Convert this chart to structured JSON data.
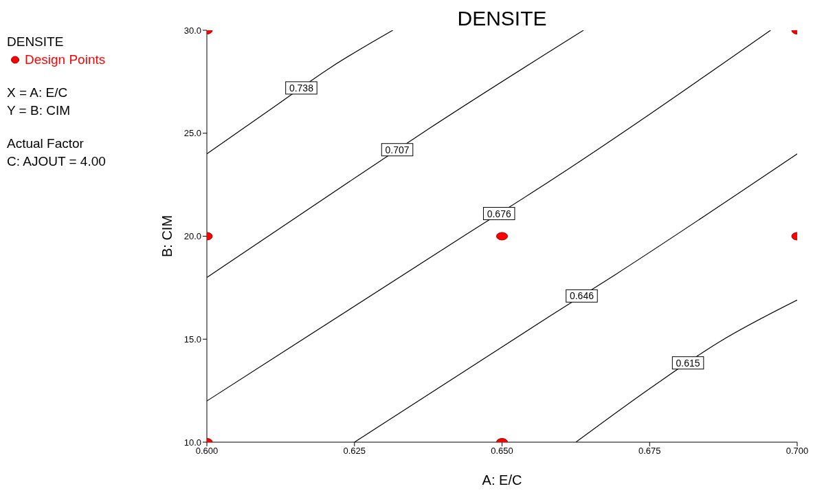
{
  "chart_data": {
    "type": "line",
    "title": "DENSITE",
    "xlabel": "A: E/C",
    "ylabel": "B: CIM",
    "legend_title": "DENSITE",
    "legend": "left",
    "annotations": [
      "X = A: E/C",
      "Y = B: CIM",
      "Actual Factor",
      "C: AJOUT = 4.00"
    ],
    "xlim": [
      0.6,
      0.7
    ],
    "xticks": [
      {
        "value": 0.6,
        "label": "0.600"
      },
      {
        "value": 0.625,
        "label": "0.625"
      },
      {
        "value": 0.65,
        "label": "0.650"
      },
      {
        "value": 0.675,
        "label": "0.675"
      },
      {
        "value": 0.7,
        "label": "0.700"
      }
    ],
    "ylim": [
      10,
      30
    ],
    "yticks": [
      {
        "value": 10,
        "label": "10.0"
      },
      {
        "value": 15,
        "label": "15.0"
      },
      {
        "value": 20,
        "label": "20.0"
      },
      {
        "value": 25,
        "label": "25.0"
      },
      {
        "value": 30,
        "label": "30.0"
      }
    ],
    "line_style": "solid",
    "series": [
      {
        "name": "0.738",
        "marker": "none",
        "color": "#000000",
        "x": [
          0.6,
          0.611,
          0.621,
          0.6315
        ],
        "values": [
          24.0,
          26.2,
          28.2,
          30.0
        ]
      },
      {
        "name": "0.707",
        "marker": "none",
        "color": "#000000",
        "x": [
          0.6,
          0.627,
          0.6375,
          0.6638
        ],
        "values": [
          18.0,
          23.2,
          25.2,
          30.0
        ]
      },
      {
        "name": "0.676",
        "marker": "none",
        "color": "#000000",
        "x": [
          0.6,
          0.644,
          0.655,
          0.6955
        ],
        "values": [
          12.0,
          20.1,
          22.1,
          30.0
        ]
      },
      {
        "name": "0.646",
        "marker": "none",
        "color": "#000000",
        "x": [
          0.625,
          0.658,
          0.669,
          0.7
        ],
        "values": [
          10.0,
          16.1,
          18.1,
          24.0
        ]
      },
      {
        "name": "0.615",
        "marker": "none",
        "color": "#000000",
        "x": [
          0.6625,
          0.676,
          0.687,
          0.7
        ],
        "values": [
          10.0,
          12.8,
          14.9,
          16.9
        ]
      },
      {
        "name": "Design Points",
        "type": "scatter",
        "marker": "circle",
        "color": "#ff0000",
        "x": [
          0.6,
          0.7,
          0.6,
          0.65,
          0.7,
          0.6,
          0.65
        ],
        "values": [
          30,
          30,
          20,
          20,
          20,
          10,
          10
        ]
      }
    ]
  }
}
